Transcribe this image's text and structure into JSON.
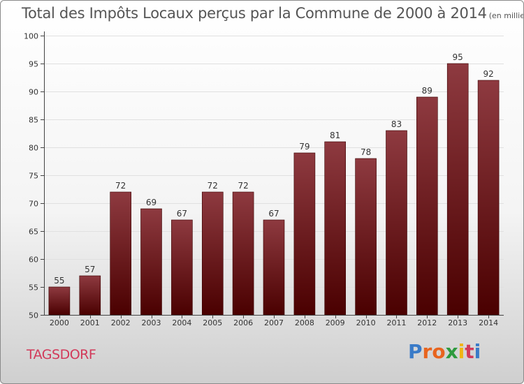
{
  "title": "Total des Impôts Locaux perçus par la Commune de 2000 à 2014",
  "unit": "(en milliers d'€)",
  "commune": "TAGSDORF",
  "logo": {
    "text": "Proxiti",
    "colors": [
      "#3a7bc8",
      "#e8641e",
      "#e8641e",
      "#2e9a3e",
      "#f0b414",
      "#d23a5a",
      "#3a7bc8"
    ]
  },
  "colors": {
    "bar_top": "#8e3a40",
    "bar_bottom": "#4a0000",
    "bar_edge": "#3a0000"
  },
  "chart_data": {
    "type": "bar",
    "title": "Total des Impôts Locaux perçus par la Commune de 2000 à 2014",
    "xlabel": "",
    "ylabel": "",
    "categories": [
      "2000",
      "2001",
      "2002",
      "2003",
      "2004",
      "2005",
      "2006",
      "2007",
      "2008",
      "2009",
      "2010",
      "2011",
      "2012",
      "2013",
      "2014"
    ],
    "values": [
      55,
      57,
      72,
      69,
      67,
      72,
      72,
      67,
      79,
      81,
      78,
      83,
      89,
      95,
      92
    ],
    "ylim": [
      50,
      100
    ],
    "yticks": [
      50,
      55,
      60,
      65,
      70,
      75,
      80,
      85,
      90,
      95,
      100
    ],
    "grid": true,
    "legend": "none"
  }
}
